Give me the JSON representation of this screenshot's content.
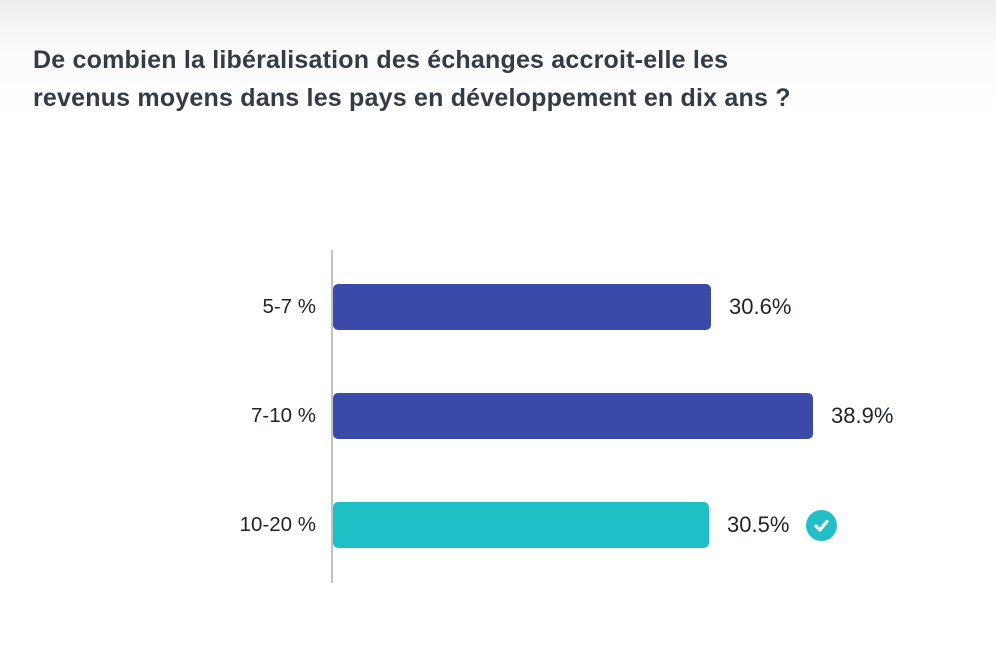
{
  "question": {
    "line1": "De combien la libéralisation des échanges accroit-elle les",
    "line2": "revenus moyens dans les pays en développement en dix ans ?"
  },
  "chart_data": {
    "type": "bar",
    "orientation": "horizontal",
    "title": "De combien la libéralisation des échanges accroit-elle les revenus moyens dans les pays en développement en dix ans ?",
    "categories": [
      "5-7 %",
      "7-10 %",
      "10-20 %"
    ],
    "values": [
      30.6,
      38.9,
      30.5
    ],
    "value_labels": [
      "30.6%",
      "38.9%",
      "30.5%"
    ],
    "correct_index": 2,
    "xlim": [
      0,
      38.9
    ],
    "grid": false,
    "legend": "none",
    "axis_style": "left-baseline-only"
  },
  "colors": {
    "bar_default": "#3B4AA9",
    "bar_correct": "#1FBFC7",
    "badge": "#22BEC6",
    "title_text": "#343B46",
    "label_text": "#1E242C",
    "axis_line": "#C2C2C2",
    "background": "#FFFFFF",
    "background_top": "#ECECEC"
  },
  "icons": {
    "correct_check": "✓"
  }
}
